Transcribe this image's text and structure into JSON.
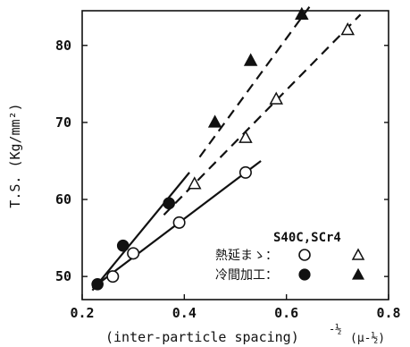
{
  "chart_data": {
    "type": "scatter",
    "title": "",
    "xlabel": "(inter-particle spacing)",
    "xlabel_exponent": "-½",
    "xlabel_unit": "(μ-½)",
    "ylabel": "T.S. (Kg/mm²)",
    "xlim": [
      0.2,
      0.8
    ],
    "ylim": [
      47,
      84.5
    ],
    "xticks": [
      "0.2",
      "0.4",
      "0.6",
      "0.8"
    ],
    "yticks": [
      "50",
      "60",
      "70",
      "80"
    ],
    "xtick_values": [
      0.2,
      0.4,
      0.6,
      0.8
    ],
    "ytick_values": [
      50,
      60,
      70,
      80
    ],
    "grid": false,
    "legend_placement": "lower-right",
    "legend_header": "S40C,SCr4",
    "series": [
      {
        "name": "熱延まゝ",
        "steel": "S40C",
        "marker": "open-circle",
        "points": [
          [
            0.26,
            50
          ],
          [
            0.3,
            53
          ],
          [
            0.39,
            57
          ],
          [
            0.52,
            63.5
          ]
        ],
        "fit": [
          [
            0.22,
            48.5
          ],
          [
            0.55,
            65
          ]
        ],
        "fit_style": "solid"
      },
      {
        "name": "冷間加工",
        "steel": "S40C",
        "marker": "filled-circle",
        "points": [
          [
            0.23,
            49
          ],
          [
            0.28,
            54
          ],
          [
            0.37,
            59.5
          ]
        ],
        "fit": [
          [
            0.22,
            48.2
          ],
          [
            0.41,
            63.5
          ]
        ],
        "fit_style": "solid"
      },
      {
        "name": "熱延まゝ",
        "steel": "SCr4",
        "marker": "open-triangle",
        "points": [
          [
            0.42,
            62
          ],
          [
            0.52,
            68
          ],
          [
            0.58,
            73
          ],
          [
            0.72,
            82
          ]
        ],
        "fit": [
          [
            0.36,
            58
          ],
          [
            0.745,
            84
          ]
        ],
        "fit_style": "dashed"
      },
      {
        "name": "冷間加工",
        "steel": "SCr4",
        "marker": "filled-triangle",
        "points": [
          [
            0.46,
            70
          ],
          [
            0.53,
            78
          ],
          [
            0.63,
            84
          ]
        ],
        "fit": [
          [
            0.43,
            65.5
          ],
          [
            0.645,
            85
          ]
        ],
        "fit_style": "dashed"
      }
    ],
    "legend": {
      "rows": [
        {
          "label": "熱延まゝ：",
          "circle": "open",
          "triangle": "open"
        },
        {
          "label": "冷間加工：",
          "circle": "filled",
          "triangle": "filled"
        }
      ]
    }
  }
}
